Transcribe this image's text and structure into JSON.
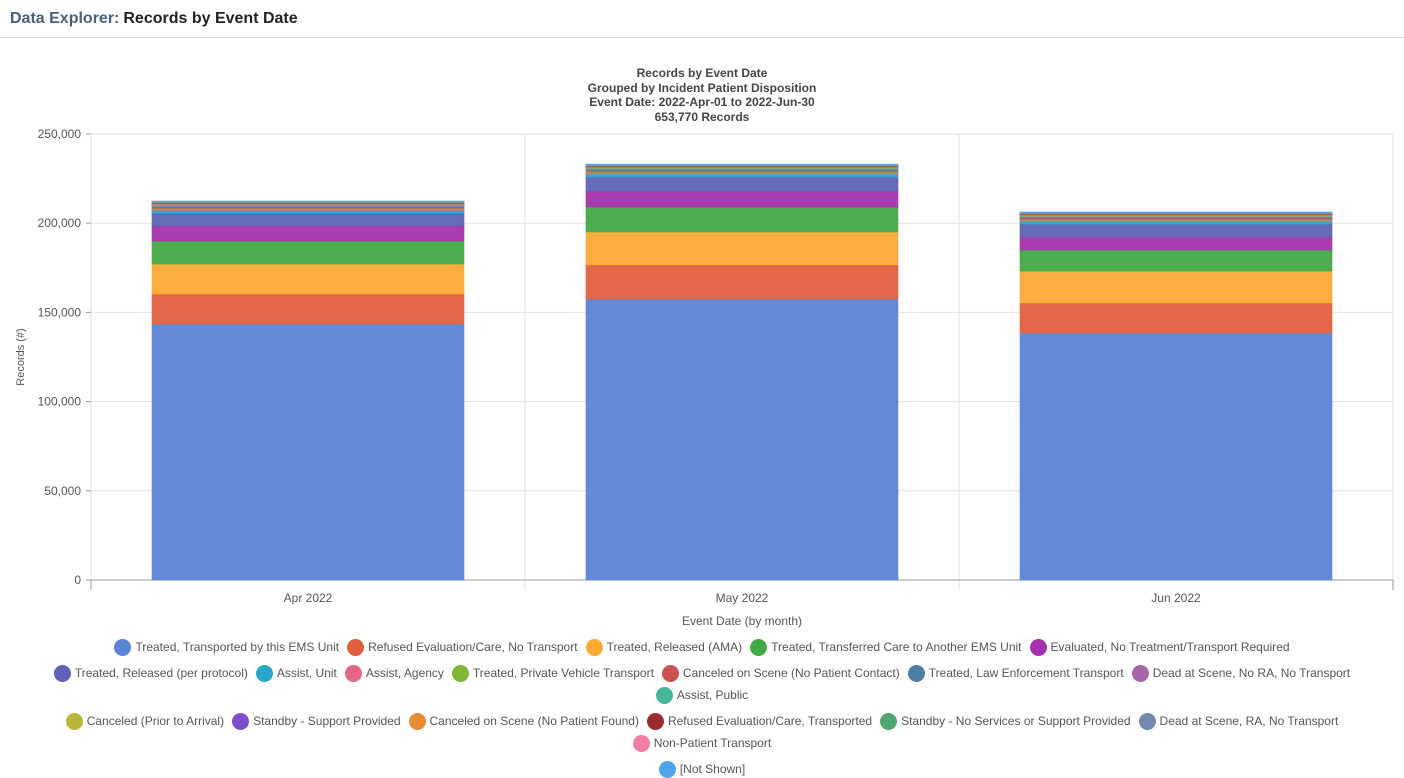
{
  "header": {
    "prefix": "Data Explorer:",
    "title": "Records by Event Date"
  },
  "chart_data": {
    "type": "bar",
    "stacked": true,
    "title": "Records by Event Date",
    "subtitles": [
      "Grouped by Incident Patient Disposition",
      "Event Date: 2022-Apr-01 to 2022-Jun-30",
      "653,770 Records"
    ],
    "xlabel": "Event Date (by month)",
    "ylabel": "Records (#)",
    "ylim": [
      0,
      250000
    ],
    "yticks": [
      0,
      50000,
      100000,
      150000,
      200000,
      250000
    ],
    "ytick_labels": [
      "0",
      "50,000",
      "100,000",
      "150,000",
      "200,000",
      "250,000"
    ],
    "grid": true,
    "legend_position": "bottom",
    "categories": [
      "Apr 2022",
      "May 2022",
      "Jun 2022"
    ],
    "series": [
      {
        "name": "Treated, Transported by this EMS Unit",
        "color": "#5b84d4",
        "values": [
          143500,
          157500,
          138400
        ]
      },
      {
        "name": "Refused Evaluation/Care, No Transport",
        "color": "#e0603f",
        "values": [
          16800,
          19100,
          16900
        ]
      },
      {
        "name": "Treated, Released (AMA)",
        "color": "#fbaa35",
        "values": [
          16800,
          18500,
          17900
        ]
      },
      {
        "name": "Treated, Transferred Care to Another EMS Unit",
        "color": "#41a945",
        "values": [
          12900,
          14000,
          11800
        ]
      },
      {
        "name": "Evaluated, No Treatment/Transport Required",
        "color": "#a432ad",
        "values": [
          8400,
          8900,
          7200
        ]
      },
      {
        "name": "Treated, Released (per protocol)",
        "color": "#5f63b8",
        "values": [
          7300,
          7900,
          7300
        ]
      },
      {
        "name": "Assist, Unit",
        "color": "#2ba6cb",
        "values": [
          1500,
          1700,
          1600
        ]
      },
      {
        "name": "Assist, Agency",
        "color": "#e36587",
        "values": [
          600,
          700,
          600
        ]
      },
      {
        "name": "Treated, Private Vehicle Transport",
        "color": "#7db735",
        "values": [
          500,
          500,
          500
        ]
      },
      {
        "name": "Canceled on Scene (No Patient Contact)",
        "color": "#c9524f",
        "values": [
          700,
          800,
          700
        ]
      },
      {
        "name": "Treated, Law Enforcement Transport",
        "color": "#4f7ea5",
        "values": [
          400,
          500,
          400
        ]
      },
      {
        "name": "Dead at Scene, No RA, No Transport",
        "color": "#a766a9",
        "values": [
          300,
          300,
          300
        ]
      },
      {
        "name": "Assist, Public",
        "color": "#48b69b",
        "values": [
          400,
          400,
          400
        ]
      },
      {
        "name": "Canceled (Prior to Arrival)",
        "color": "#b9b63b",
        "values": [
          300,
          300,
          300
        ]
      },
      {
        "name": "Standby - Support Provided",
        "color": "#7d4fcc",
        "values": [
          200,
          200,
          200
        ]
      },
      {
        "name": "Canceled on Scene (No Patient Found)",
        "color": "#e98c36",
        "values": [
          400,
          400,
          400
        ]
      },
      {
        "name": "Refused Evaluation/Care, Transported",
        "color": "#9c2b2b",
        "values": [
          300,
          300,
          300
        ]
      },
      {
        "name": "Standby - No Services or Support Provided",
        "color": "#4fa66e",
        "values": [
          300,
          300,
          300
        ]
      },
      {
        "name": "Dead at Scene, RA, No Transport",
        "color": "#7288ad",
        "values": [
          200,
          200,
          200
        ]
      },
      {
        "name": "Non-Patient Transport",
        "color": "#f07da8",
        "values": [
          100,
          100,
          100
        ]
      },
      {
        "name": "[Not Shown]",
        "color": "#4fa3ea",
        "values": [
          500,
          500,
          500
        ]
      }
    ]
  }
}
